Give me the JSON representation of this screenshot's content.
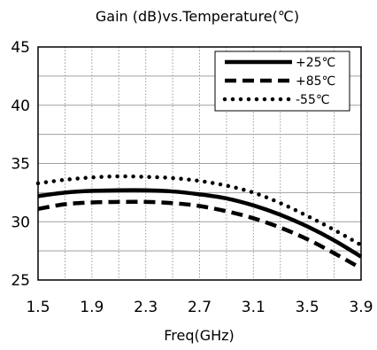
{
  "chart_data": {
    "type": "line",
    "title": "Gain (dB)vs.Temperature(℃)",
    "xlabel": "Freq(GHz)",
    "ylabel": "",
    "xlim": [
      1.5,
      3.9
    ],
    "ylim": [
      25,
      45
    ],
    "x_ticks": [
      "1.5",
      "1.9",
      "2.3",
      "2.7",
      "3.1",
      "3.5",
      "3.9"
    ],
    "y_ticks": [
      "25",
      "30",
      "35",
      "40",
      "45"
    ],
    "grid": true,
    "legend_position": "top-right",
    "series": [
      {
        "name": "+25℃",
        "style": "solid",
        "color": "#000000",
        "x": [
          1.5,
          1.7,
          1.9,
          2.1,
          2.3,
          2.5,
          2.7,
          2.9,
          3.1,
          3.3,
          3.5,
          3.7,
          3.9
        ],
        "y": [
          32.2,
          32.5,
          32.65,
          32.7,
          32.7,
          32.6,
          32.35,
          32.0,
          31.4,
          30.6,
          29.6,
          28.4,
          27.0
        ]
      },
      {
        "name": "+85℃",
        "style": "dashed",
        "color": "#000000",
        "x": [
          1.5,
          1.7,
          1.9,
          2.1,
          2.3,
          2.5,
          2.7,
          2.9,
          3.1,
          3.3,
          3.5,
          3.7,
          3.9
        ],
        "y": [
          31.1,
          31.5,
          31.65,
          31.7,
          31.7,
          31.6,
          31.35,
          30.9,
          30.3,
          29.5,
          28.5,
          27.3,
          26.0
        ]
      },
      {
        "name": "-55℃",
        "style": "dotted",
        "color": "#000000",
        "x": [
          1.5,
          1.7,
          1.9,
          2.1,
          2.3,
          2.5,
          2.7,
          2.9,
          3.1,
          3.3,
          3.5,
          3.7,
          3.9
        ],
        "y": [
          33.3,
          33.6,
          33.8,
          33.9,
          33.85,
          33.75,
          33.5,
          33.1,
          32.5,
          31.6,
          30.5,
          29.3,
          28.0
        ]
      }
    ]
  }
}
